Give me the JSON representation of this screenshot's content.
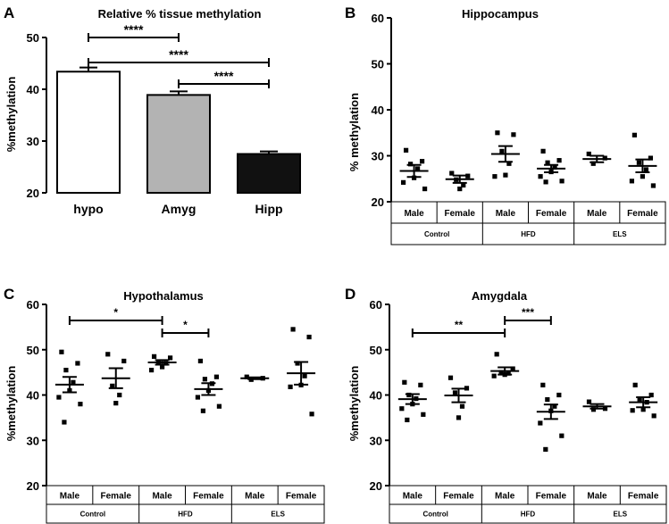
{
  "chart_data": [
    {
      "panel": "A",
      "type": "bar",
      "title": "Relative % tissue methylation",
      "ylabel": "%methylation",
      "xlabel": "",
      "ylim": [
        20,
        50
      ],
      "yticks": [
        20,
        30,
        40,
        50
      ],
      "categories": [
        "hypo",
        "Amyg",
        "Hipp"
      ],
      "values": [
        43.4,
        38.9,
        27.5
      ],
      "errors": [
        0.8,
        0.7,
        0.5
      ],
      "colors": [
        "#ffffff",
        "#b3b3b3",
        "#111111"
      ],
      "significance": [
        {
          "from": 0,
          "to": 1,
          "label": "****"
        },
        {
          "from": 0,
          "to": 2,
          "label": "****"
        },
        {
          "from": 1,
          "to": 2,
          "label": "****"
        }
      ]
    },
    {
      "panel": "B",
      "type": "scatter",
      "title": "Hippocampus",
      "ylabel": "% methylation",
      "ylim": [
        20,
        60
      ],
      "yticks": [
        20,
        30,
        40,
        50,
        60
      ],
      "sex_labels": [
        "Male",
        "Female",
        "Male",
        "Female",
        "Male",
        "Female"
      ],
      "group_labels": [
        "Control",
        "HFD",
        "ELS"
      ],
      "series": [
        {
          "name": "Control Male",
          "points": [
            31.2,
            28.8,
            28.2,
            27.2,
            25.2,
            24.2,
            22.8
          ],
          "mean": 26.7,
          "sem": 1.3
        },
        {
          "name": "Control Female",
          "points": [
            26.2,
            25.6,
            24.8,
            23.6,
            22.8
          ],
          "mean": 24.9,
          "sem": 0.8
        },
        {
          "name": "HFD Male",
          "points": [
            35.0,
            34.6,
            31.0,
            28.3,
            25.8,
            25.5
          ],
          "mean": 30.4,
          "sem": 1.7
        },
        {
          "name": "HFD Female",
          "points": [
            31.0,
            29.0,
            28.5,
            27.5,
            26.5,
            25.5,
            24.5,
            24.3
          ],
          "mean": 27.2,
          "sem": 0.8
        },
        {
          "name": "ELS Male",
          "points": [
            30.4,
            29.5,
            28.3
          ],
          "mean": 29.3,
          "sem": 0.7
        },
        {
          "name": "ELS Female",
          "points": [
            34.5,
            29.5,
            28.5,
            27.0,
            25.5,
            24.5,
            23.5
          ],
          "mean": 27.8,
          "sem": 1.4
        }
      ],
      "significance": []
    },
    {
      "panel": "C",
      "type": "scatter",
      "title": "Hypothalamus",
      "ylabel": "%methylation",
      "ylim": [
        20,
        60
      ],
      "yticks": [
        20,
        30,
        40,
        50,
        60
      ],
      "sex_labels": [
        "Male",
        "Female",
        "Male",
        "Female",
        "Male",
        "Female"
      ],
      "group_labels": [
        "Control",
        "HFD",
        "ELS"
      ],
      "series": [
        {
          "name": "Control Male",
          "points": [
            49.5,
            47.0,
            45.5,
            42.8,
            41.0,
            39.5,
            38.0,
            34.0
          ],
          "mean": 42.3,
          "sem": 1.7
        },
        {
          "name": "Control Female",
          "points": [
            49.0,
            47.5,
            42.0,
            40.0,
            38.2
          ],
          "mean": 43.7,
          "sem": 2.2
        },
        {
          "name": "HFD Male",
          "points": [
            48.5,
            48.2,
            47.3,
            47.0,
            46.2,
            45.5
          ],
          "mean": 47.2,
          "sem": 0.5
        },
        {
          "name": "HFD Female",
          "points": [
            47.5,
            44.0,
            43.5,
            42.5,
            41.0,
            39.5,
            37.5,
            36.5
          ],
          "mean": 41.3,
          "sem": 1.3
        },
        {
          "name": "ELS Male",
          "points": [
            44.0,
            43.7,
            43.4
          ],
          "mean": 43.7,
          "sem": 0.2
        },
        {
          "name": "ELS Female",
          "points": [
            54.5,
            52.8,
            47.0,
            44.2,
            42.2,
            41.8,
            35.8
          ],
          "mean": 44.8,
          "sem": 2.5
        }
      ],
      "significance": [
        {
          "from": 0,
          "to": 2,
          "label": "*"
        },
        {
          "from": 2,
          "to": 3,
          "label": "*"
        }
      ]
    },
    {
      "panel": "D",
      "type": "scatter",
      "title": "Amygdala",
      "ylabel": "%methylation",
      "ylim": [
        20,
        60
      ],
      "yticks": [
        20,
        30,
        40,
        50,
        60
      ],
      "sex_labels": [
        "Male",
        "Female",
        "Male",
        "Female",
        "Male",
        "Female"
      ],
      "group_labels": [
        "Control",
        "HFD",
        "ELS"
      ],
      "series": [
        {
          "name": "Control Male",
          "points": [
            42.8,
            42.2,
            40.0,
            39.2,
            38.0,
            37.0,
            35.7,
            34.5
          ],
          "mean": 39.1,
          "sem": 1.1
        },
        {
          "name": "Control Female",
          "points": [
            43.8,
            41.5,
            40.5,
            37.5,
            35.0
          ],
          "mean": 39.9,
          "sem": 1.5
        },
        {
          "name": "HFD Male",
          "points": [
            49.0,
            45.8,
            45.0,
            44.8,
            44.5,
            44.2
          ],
          "mean": 45.3,
          "sem": 0.8
        },
        {
          "name": "HFD Female",
          "points": [
            42.2,
            40.0,
            39.0,
            37.5,
            36.5,
            33.8,
            31.0,
            28.0
          ],
          "mean": 36.3,
          "sem": 1.6
        },
        {
          "name": "ELS Male",
          "points": [
            38.5,
            37.0,
            36.8
          ],
          "mean": 37.5,
          "sem": 0.5
        },
        {
          "name": "ELS Female",
          "points": [
            42.2,
            40.0,
            39.0,
            38.4,
            36.8,
            36.6,
            35.4
          ],
          "mean": 38.4,
          "sem": 1.1
        }
      ],
      "significance": [
        {
          "from": 0,
          "to": 2,
          "label": "**"
        },
        {
          "from": 2,
          "to": 3,
          "label": "***"
        }
      ]
    }
  ],
  "panel_labels": [
    "A",
    "B",
    "C",
    "D"
  ]
}
